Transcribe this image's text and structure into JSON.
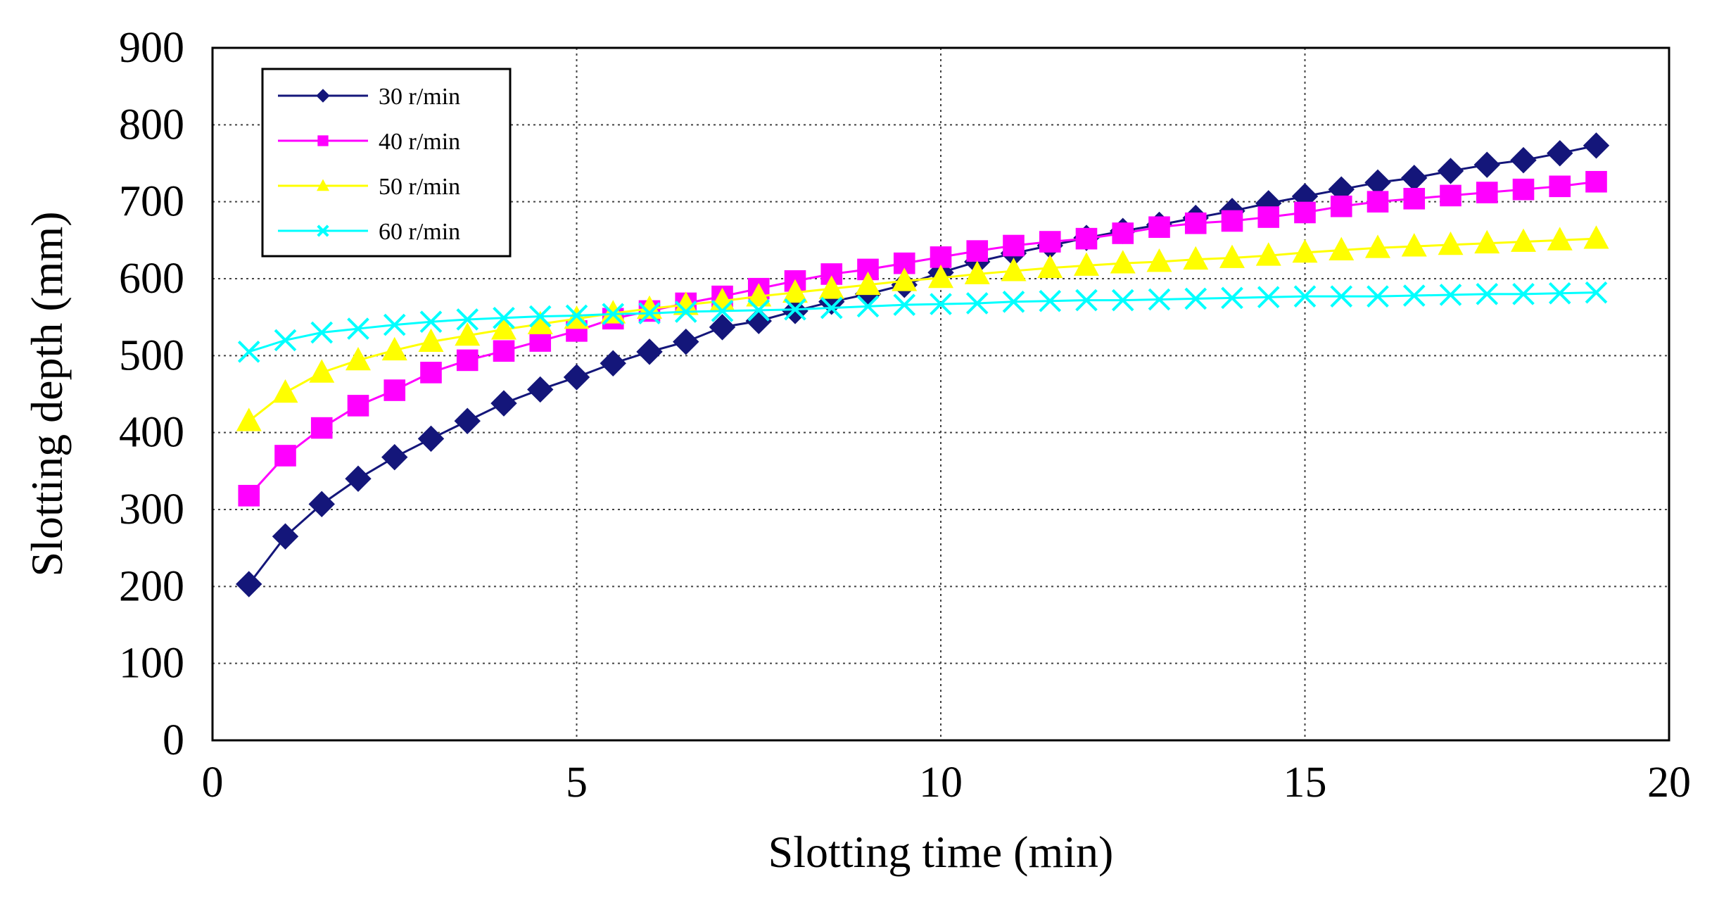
{
  "chart_data": {
    "type": "line",
    "title": "",
    "xlabel": "Slotting time (min)",
    "ylabel": "Slotting depth (mm)",
    "xlim": [
      0,
      20
    ],
    "ylim": [
      0,
      900
    ],
    "x_ticks": [
      "0",
      "5",
      "10",
      "15",
      "20"
    ],
    "y_ticks": [
      "0",
      "100",
      "200",
      "300",
      "400",
      "500",
      "600",
      "700",
      "800",
      "900"
    ],
    "grid": "dotted",
    "legend_position": "top-left",
    "x": [
      0.5,
      1,
      1.5,
      2,
      2.5,
      3,
      3.5,
      4,
      4.5,
      5,
      5.5,
      6,
      6.5,
      7,
      7.5,
      8,
      8.5,
      9,
      9.5,
      10,
      10.5,
      11,
      11.5,
      12,
      12.5,
      13,
      13.5,
      14,
      14.5,
      15,
      15.5,
      16,
      16.5,
      17,
      17.5,
      18,
      18.5,
      19
    ],
    "series": [
      {
        "name": "30 r/min",
        "color": "#14167a",
        "marker": "diamond",
        "values": [
          203,
          265,
          307,
          340,
          368,
          392,
          415,
          438,
          456,
          472,
          490,
          505,
          518,
          537,
          545,
          558,
          570,
          580,
          592,
          608,
          622,
          633,
          643,
          653,
          662,
          670,
          679,
          688,
          698,
          707,
          716,
          725,
          731,
          740,
          748,
          754,
          763,
          773
        ]
      },
      {
        "name": "40 r/min",
        "color": "#ff00ff",
        "marker": "square",
        "values": [
          318,
          370,
          406,
          435,
          455,
          478,
          494,
          506,
          519,
          532,
          548,
          558,
          568,
          577,
          587,
          597,
          606,
          612,
          620,
          628,
          636,
          643,
          648,
          652,
          659,
          667,
          672,
          675,
          680,
          686,
          694,
          700,
          704,
          708,
          712,
          716,
          720,
          726
        ]
      },
      {
        "name": "50 r/min",
        "color": "#ffff00",
        "marker": "triangle",
        "values": [
          415,
          452,
          478,
          494,
          507,
          518,
          526,
          534,
          541,
          548,
          555,
          561,
          566,
          571,
          577,
          582,
          587,
          592,
          597,
          601,
          606,
          610,
          614,
          617,
          620,
          622,
          625,
          627,
          630,
          634,
          637,
          640,
          642,
          644,
          646,
          648,
          650,
          652
        ]
      },
      {
        "name": "60 r/min",
        "color": "#00ffff",
        "marker": "x",
        "values": [
          505,
          520,
          530,
          535,
          540,
          544,
          547,
          549,
          551,
          552,
          554,
          555,
          557,
          558,
          559,
          560,
          562,
          564,
          566,
          567,
          568,
          570,
          571,
          572,
          572,
          573,
          574,
          575,
          576,
          577,
          577,
          577,
          578,
          579,
          580,
          580,
          581,
          582
        ]
      }
    ]
  }
}
